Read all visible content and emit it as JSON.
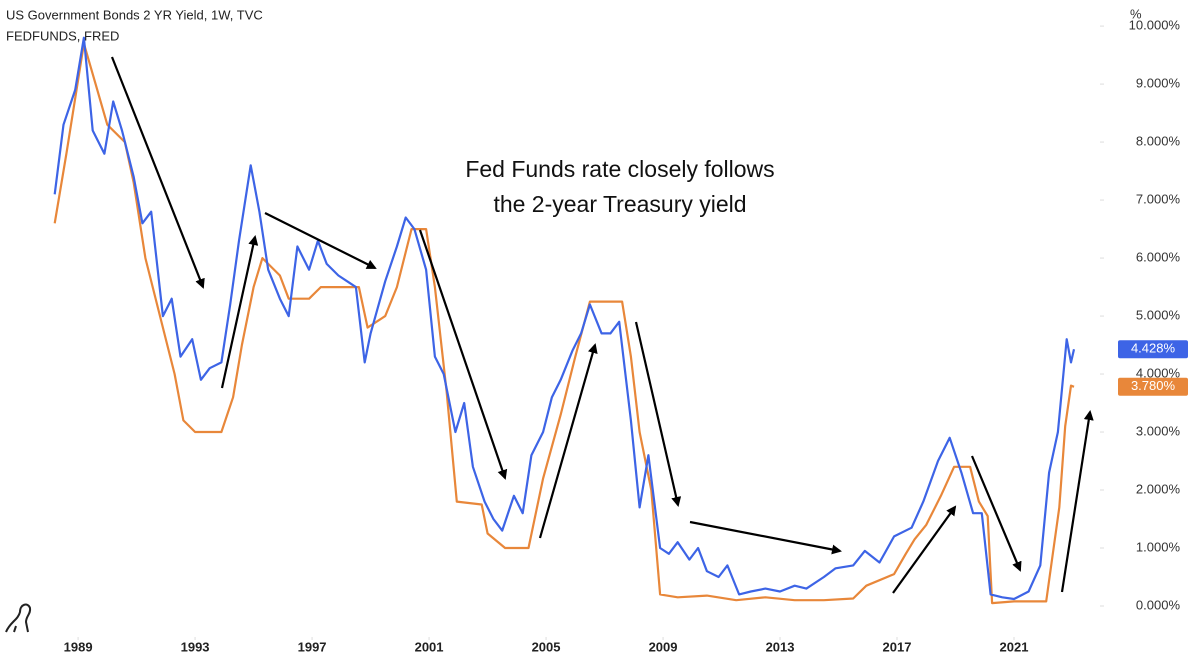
{
  "chart_data": {
    "type": "line",
    "title": "US Government Bonds 2 YR Yield, 1W, TVC",
    "subtitle": "FEDFUNDS, FRED",
    "y_axis_label": "%",
    "annotation": [
      "Fed Funds rate closely follows",
      "the 2-year Treasury yield"
    ],
    "xlim": [
      1986.33,
      2023.94
    ],
    "xticks": [
      1989,
      1993,
      1997,
      2001,
      2005,
      2009,
      2013,
      2017,
      2021
    ],
    "ylim": [
      -0.5,
      10.45
    ],
    "yticks": [
      {
        "value": 0,
        "label": "0.000%"
      },
      {
        "value": 1,
        "label": "1.000%"
      },
      {
        "value": 2,
        "label": "2.000%"
      },
      {
        "value": 3,
        "label": "3.000%"
      },
      {
        "value": 4,
        "label": "4.000%"
      },
      {
        "value": 5,
        "label": "5.000%"
      },
      {
        "value": 6,
        "label": "6.000%"
      },
      {
        "value": 7,
        "label": "7.000%"
      },
      {
        "value": 8,
        "label": "8.000%"
      },
      {
        "value": 9,
        "label": "9.000%"
      },
      {
        "value": 10,
        "label": "10.000%"
      }
    ],
    "grid": false,
    "series": [
      {
        "name": "US Government Bonds 2 YR Yield",
        "color": "#3d64e6",
        "last_label": "4.428%",
        "x": [
          1988.2,
          1988.5,
          1988.9,
          1989.2,
          1989.5,
          1989.9,
          1990.2,
          1990.5,
          1990.9,
          1991.2,
          1991.5,
          1991.9,
          1992.2,
          1992.5,
          1992.9,
          1993.2,
          1993.5,
          1993.9,
          1994.2,
          1994.5,
          1994.9,
          1995.2,
          1995.5,
          1995.9,
          1996.2,
          1996.5,
          1996.9,
          1997.2,
          1997.5,
          1997.9,
          1998.2,
          1998.5,
          1998.8,
          1999.0,
          1999.5,
          1999.9,
          2000.2,
          2000.5,
          2000.9,
          2001.2,
          2001.5,
          2001.9,
          2002.2,
          2002.5,
          2002.9,
          2003.2,
          2003.5,
          2003.9,
          2004.2,
          2004.5,
          2004.9,
          2005.2,
          2005.5,
          2005.9,
          2006.2,
          2006.5,
          2006.9,
          2007.2,
          2007.5,
          2007.9,
          2008.2,
          2008.5,
          2008.9,
          2009.2,
          2009.5,
          2009.9,
          2010.2,
          2010.5,
          2010.9,
          2011.2,
          2011.6,
          2012.0,
          2012.5,
          2013.0,
          2013.5,
          2013.9,
          2014.5,
          2014.9,
          2015.5,
          2015.9,
          2016.4,
          2016.9,
          2017.5,
          2017.9,
          2018.4,
          2018.8,
          2019.2,
          2019.6,
          2019.9,
          2020.2,
          2020.6,
          2021.0,
          2021.5,
          2021.9,
          2022.2,
          2022.5,
          2022.8,
          2022.95,
          2023.05
        ],
        "values": [
          7.1,
          8.3,
          8.9,
          9.8,
          8.2,
          7.8,
          8.7,
          8.2,
          7.4,
          6.6,
          6.8,
          5.0,
          5.3,
          4.3,
          4.6,
          3.9,
          4.1,
          4.2,
          5.2,
          6.3,
          7.6,
          6.8,
          5.8,
          5.3,
          5.0,
          6.2,
          5.8,
          6.3,
          5.9,
          5.7,
          5.6,
          5.5,
          4.2,
          4.7,
          5.6,
          6.2,
          6.7,
          6.5,
          5.8,
          4.3,
          4.0,
          3.0,
          3.5,
          2.4,
          1.8,
          1.5,
          1.3,
          1.9,
          1.6,
          2.6,
          3.0,
          3.6,
          3.9,
          4.4,
          4.7,
          5.2,
          4.7,
          4.7,
          4.9,
          3.2,
          1.7,
          2.6,
          1.0,
          0.9,
          1.1,
          0.8,
          1.0,
          0.6,
          0.5,
          0.7,
          0.2,
          0.25,
          0.3,
          0.25,
          0.35,
          0.3,
          0.5,
          0.65,
          0.7,
          0.95,
          0.75,
          1.2,
          1.35,
          1.8,
          2.5,
          2.9,
          2.3,
          1.6,
          1.6,
          0.2,
          0.15,
          0.12,
          0.25,
          0.7,
          2.3,
          3.0,
          4.6,
          4.2,
          4.428
        ]
      },
      {
        "name": "FEDFUNDS",
        "color": "#e8873a",
        "last_label": "3.780%",
        "x": [
          1988.2,
          1988.6,
          1989.2,
          1989.6,
          1990.0,
          1990.6,
          1990.9,
          1991.3,
          1991.9,
          1992.3,
          1992.6,
          1993.0,
          1993.9,
          1994.3,
          1994.6,
          1995.0,
          1995.3,
          1995.9,
          1996.2,
          1996.9,
          1997.3,
          1998.6,
          1998.9,
          1999.5,
          1999.9,
          2000.4,
          2000.9,
          2001.2,
          2001.6,
          2001.95,
          2002.8,
          2003.0,
          2003.6,
          2004.4,
          2004.9,
          2005.5,
          2006.0,
          2006.5,
          2007.6,
          2007.9,
          2008.2,
          2008.6,
          2008.9,
          2009.5,
          2010.5,
          2011.5,
          2012.5,
          2013.5,
          2014.5,
          2015.5,
          2015.95,
          2016.9,
          2017.3,
          2017.6,
          2018.0,
          2018.5,
          2018.95,
          2019.5,
          2019.8,
          2020.1,
          2020.25,
          2021.0,
          2022.1,
          2022.3,
          2022.55,
          2022.75,
          2022.95,
          2023.05
        ],
        "values": [
          6.6,
          7.8,
          9.7,
          9.0,
          8.3,
          8.0,
          7.3,
          6.0,
          4.8,
          4.0,
          3.2,
          3.0,
          3.0,
          3.6,
          4.5,
          5.5,
          6.0,
          5.7,
          5.3,
          5.3,
          5.5,
          5.5,
          4.8,
          5.0,
          5.5,
          6.5,
          6.5,
          5.5,
          3.7,
          1.8,
          1.75,
          1.25,
          1.0,
          1.0,
          2.2,
          3.3,
          4.3,
          5.25,
          5.25,
          4.3,
          3.0,
          2.0,
          0.2,
          0.15,
          0.18,
          0.1,
          0.15,
          0.1,
          0.1,
          0.13,
          0.35,
          0.55,
          0.9,
          1.15,
          1.4,
          1.9,
          2.4,
          2.4,
          1.8,
          1.55,
          0.05,
          0.08,
          0.08,
          0.8,
          1.7,
          3.1,
          3.8,
          3.78
        ]
      }
    ]
  }
}
